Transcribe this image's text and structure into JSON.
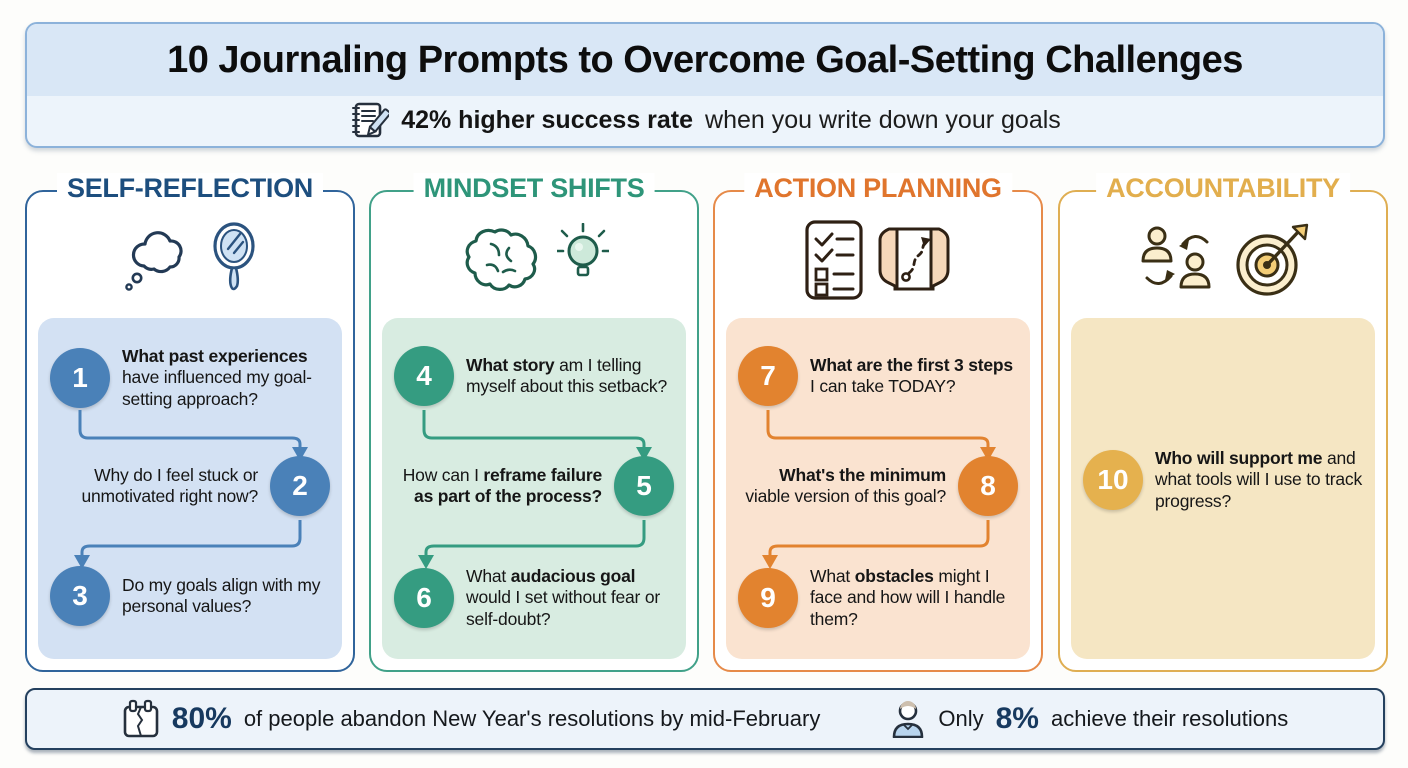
{
  "header": {
    "title": "10 Journaling Prompts to Overcome Goal-Setting Challenges",
    "subtitle_bold": "42% higher success rate",
    "subtitle_rest": "when you write down your goals",
    "icon": "journal-pencil-icon",
    "colors": {
      "band1": "#d9e7f6",
      "band2": "#edf4fb",
      "border": "#8cb2da"
    }
  },
  "columns": [
    {
      "title": "SELF-REFLECTION",
      "icons": [
        "thought-cloud-icon",
        "hand-mirror-icon"
      ],
      "colors": {
        "title": "#1d4e7e",
        "border": "#30649b",
        "tint": "#d3e1f3",
        "circle": "#4a81b8"
      },
      "prompts": [
        {
          "number": "1",
          "side": "left",
          "segments": [
            {
              "t": "What past experiences",
              "b": true
            },
            {
              "t": " have influenced my goal-setting approach?",
              "b": false
            }
          ]
        },
        {
          "number": "2",
          "side": "right",
          "segments": [
            {
              "t": "Why do I feel stuck or unmotivated right now?",
              "b": false
            }
          ]
        },
        {
          "number": "3",
          "side": "left",
          "segments": [
            {
              "t": "Do my goals align with my personal values?",
              "b": false
            }
          ]
        }
      ]
    },
    {
      "title": "MINDSET SHIFTS",
      "icons": [
        "brain-icon",
        "lightbulb-icon"
      ],
      "colors": {
        "title": "#2e9579",
        "border": "#41a189",
        "tint": "#d8ece1",
        "circle": "#359c81"
      },
      "prompts": [
        {
          "number": "4",
          "side": "left",
          "segments": [
            {
              "t": "What story",
              "b": true
            },
            {
              "t": " am I telling myself about this setback?",
              "b": false
            }
          ]
        },
        {
          "number": "5",
          "side": "right",
          "segments": [
            {
              "t": "How can I ",
              "b": false
            },
            {
              "t": "reframe failure as part of the process?",
              "b": true
            }
          ]
        },
        {
          "number": "6",
          "side": "left",
          "segments": [
            {
              "t": "What ",
              "b": false
            },
            {
              "t": "audacious goal",
              "b": true
            },
            {
              "t": " would I set without fear or self-doubt?",
              "b": false
            }
          ]
        }
      ]
    },
    {
      "title": "ACTION PLANNING",
      "icons": [
        "checklist-icon",
        "map-route-icon"
      ],
      "colors": {
        "title": "#e0752d",
        "border": "#e68a49",
        "tint": "#fae3d0",
        "circle": "#e2832f"
      },
      "prompts": [
        {
          "number": "7",
          "side": "left",
          "segments": [
            {
              "t": "What are the first 3 steps",
              "b": true
            },
            {
              "t": " I can take TODAY?",
              "b": false
            }
          ]
        },
        {
          "number": "8",
          "side": "right",
          "segments": [
            {
              "t": "What's the minimum",
              "b": true
            },
            {
              "t": " viable version of this goal?",
              "b": false
            }
          ]
        },
        {
          "number": "9",
          "side": "left",
          "segments": [
            {
              "t": "What ",
              "b": false
            },
            {
              "t": "obstacles",
              "b": true
            },
            {
              "t": " might I face and how will I handle them?",
              "b": false
            }
          ]
        }
      ]
    },
    {
      "title": "ACCOUNTABILITY",
      "icons": [
        "people-exchange-icon",
        "target-arrow-icon"
      ],
      "colors": {
        "title": "#e2ae4d",
        "border": "#dfae52",
        "tint": "#f5e6c3",
        "circle": "#e5b14e"
      },
      "prompts": [
        {
          "number": "10",
          "side": "left",
          "segments": [
            {
              "t": "Who will support me",
              "b": true
            },
            {
              "t": " and what tools will I use to track progress?",
              "b": false
            }
          ]
        }
      ]
    }
  ],
  "footer": {
    "stat1_value": "80%",
    "stat1_text": "of people abandon New Year's resolutions by mid-February",
    "stat2_prefix": "Only",
    "stat2_value": "8%",
    "stat2_text": "achieve their resolutions",
    "icons": [
      "torn-calendar-icon",
      "person-icon"
    ],
    "colors": {
      "accent": "#17395f"
    }
  }
}
